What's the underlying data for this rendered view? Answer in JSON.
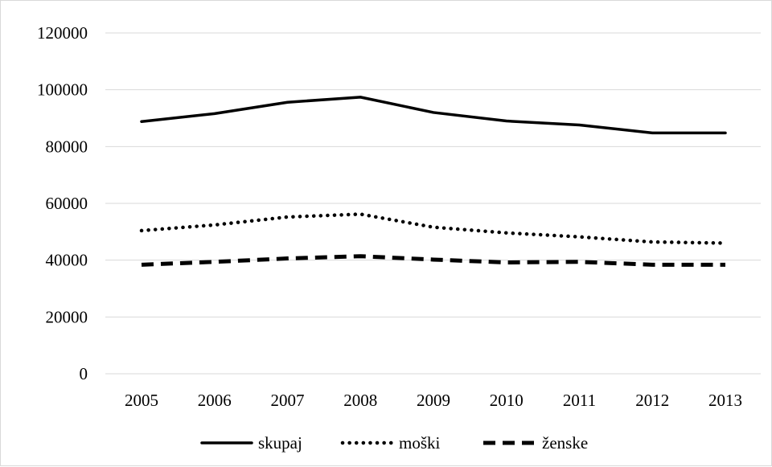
{
  "chart_data": {
    "type": "line",
    "title": "",
    "xlabel": "",
    "ylabel": "",
    "x": [
      "2005",
      "2006",
      "2007",
      "2008",
      "2009",
      "2010",
      "2011",
      "2012",
      "2013"
    ],
    "ylim": [
      0,
      120000
    ],
    "yticks": [
      0,
      20000,
      40000,
      60000,
      80000,
      100000,
      120000
    ],
    "ytick_labels": [
      "0",
      "20000",
      "40000",
      "60000",
      "80000",
      "100000",
      "120000"
    ],
    "grid": true,
    "legend_position": "bottom",
    "series": [
      {
        "name": "skupaj",
        "style": "solid",
        "color": "#000000",
        "values": [
          88800,
          91600,
          95600,
          97400,
          92000,
          89000,
          87600,
          84800,
          84800
        ]
      },
      {
        "name": "moški",
        "style": "dotted",
        "color": "#000000",
        "values": [
          50400,
          52400,
          55200,
          56200,
          51600,
          49600,
          48200,
          46400,
          46000
        ]
      },
      {
        "name": "ženske",
        "style": "dashed",
        "color": "#000000",
        "values": [
          38400,
          39400,
          40600,
          41400,
          40200,
          39200,
          39400,
          38400,
          38400
        ]
      }
    ]
  }
}
